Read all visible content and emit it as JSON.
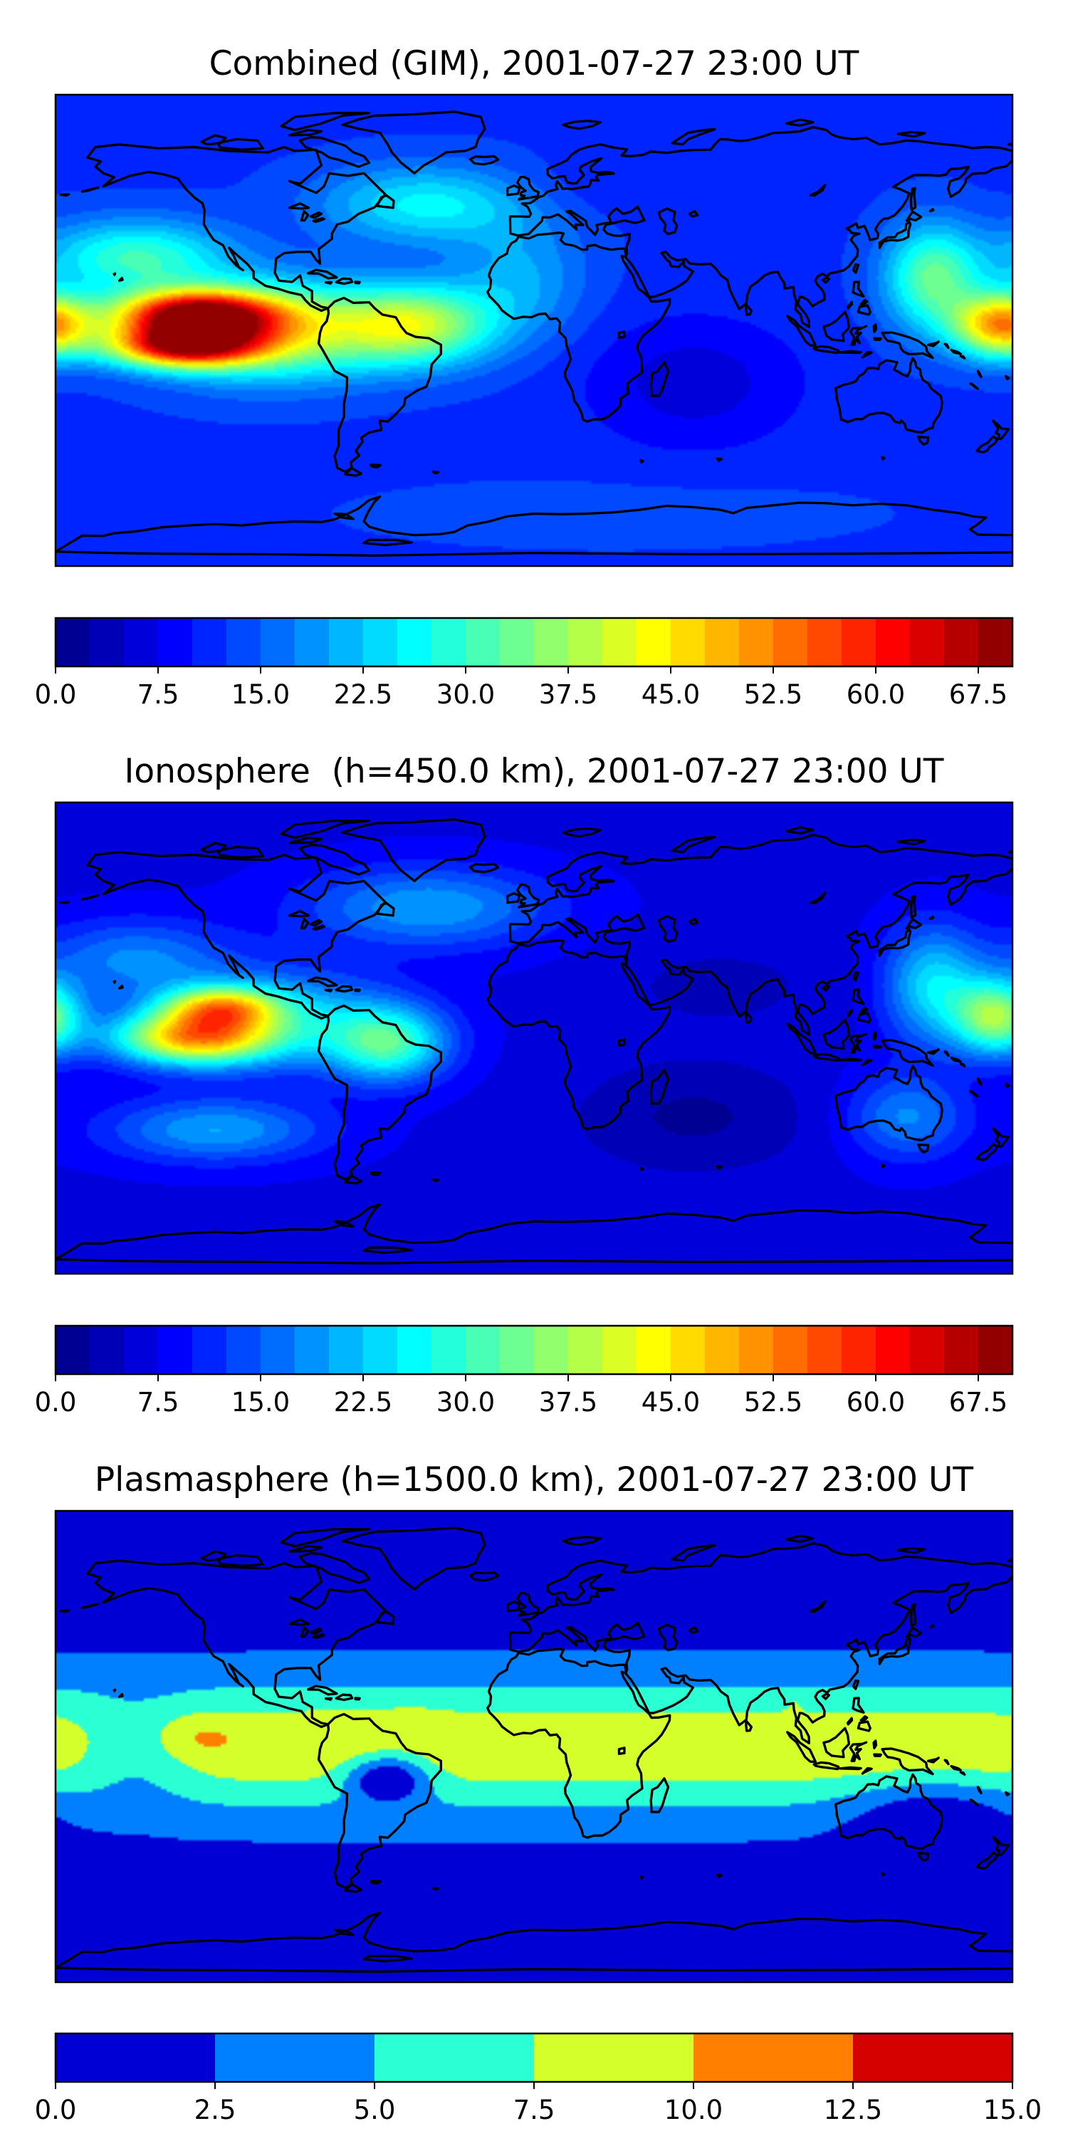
{
  "chart_data": [
    {
      "type": "heatmap",
      "title": "Combined (GIM), 2001-07-27 23:00 UT",
      "colormap": "jet",
      "colorbar": {
        "orientation": "horizontal",
        "range": [
          0.0,
          70.0
        ],
        "levels": 28,
        "ticks": [
          "0.0",
          "7.5",
          "15.0",
          "22.5",
          "30.0",
          "37.5",
          "45.0",
          "52.5",
          "60.0",
          "67.5"
        ],
        "tick_values": [
          0.0,
          7.5,
          15.0,
          22.5,
          30.0,
          37.5,
          45.0,
          52.5,
          60.0,
          67.5
        ]
      },
      "map": {
        "projection": "plate-carree",
        "lon_range": [
          -180,
          180
        ],
        "lat_range": [
          -90,
          90
        ],
        "coastlines": true,
        "grid": false
      },
      "background_value": 12,
      "features": [
        {
          "lon": -128,
          "lat": 6,
          "value": 62,
          "slon": 30,
          "slat": 9
        },
        {
          "lon": -132,
          "lat": -6,
          "value": 58,
          "slon": 28,
          "slat": 8
        },
        {
          "lon": -100,
          "lat": 0,
          "value": 40,
          "slon": 42,
          "slat": 18
        },
        {
          "lon": -45,
          "lat": 2,
          "value": 38,
          "slon": 30,
          "slat": 15
        },
        {
          "lon": -150,
          "lat": 28,
          "value": 30,
          "slon": 35,
          "slat": 14
        },
        {
          "lon": 176,
          "lat": 2,
          "value": 50,
          "slon": 18,
          "slat": 12
        },
        {
          "lon": 150,
          "lat": 20,
          "value": 33,
          "slon": 18,
          "slat": 20
        },
        {
          "lon": -40,
          "lat": 48,
          "value": 26,
          "slon": 40,
          "slat": 15
        },
        {
          "lon": -5,
          "lat": 20,
          "value": 20,
          "slon": 25,
          "slat": 22
        },
        {
          "lon": 60,
          "lat": -20,
          "value": 6,
          "slon": 40,
          "slat": 25
        },
        {
          "lon": 20,
          "lat": 55,
          "value": 10,
          "slon": 35,
          "slat": 12
        },
        {
          "lon": 30,
          "lat": -70,
          "value": 14,
          "slon": 90,
          "slat": 12
        }
      ]
    },
    {
      "type": "heatmap",
      "title": "Ionosphere  (h=450.0 km), 2001-07-27 23:00 UT",
      "colormap": "jet",
      "colorbar": {
        "orientation": "horizontal",
        "range": [
          0.0,
          70.0
        ],
        "levels": 28,
        "ticks": [
          "0.0",
          "7.5",
          "15.0",
          "22.5",
          "30.0",
          "37.5",
          "45.0",
          "52.5",
          "60.0",
          "67.5"
        ],
        "tick_values": [
          0.0,
          7.5,
          15.0,
          22.5,
          30.0,
          37.5,
          45.0,
          52.5,
          60.0,
          67.5
        ]
      },
      "map": {
        "projection": "plate-carree",
        "lon_range": [
          -180,
          180
        ],
        "lat_range": [
          -90,
          90
        ],
        "coastlines": true,
        "grid": false
      },
      "background_value": 7,
      "features": [
        {
          "lon": -128,
          "lat": 0,
          "value": 46,
          "slon": 30,
          "slat": 10
        },
        {
          "lon": -118,
          "lat": 12,
          "value": 36,
          "slon": 22,
          "slat": 8
        },
        {
          "lon": -55,
          "lat": -2,
          "value": 30,
          "slon": 22,
          "slat": 14
        },
        {
          "lon": -95,
          "lat": 8,
          "value": 22,
          "slon": 40,
          "slat": 18
        },
        {
          "lon": -150,
          "lat": 30,
          "value": 18,
          "slon": 35,
          "slat": 15
        },
        {
          "lon": 174,
          "lat": 8,
          "value": 36,
          "slon": 16,
          "slat": 14
        },
        {
          "lon": 150,
          "lat": 20,
          "value": 24,
          "slon": 18,
          "slat": 22
        },
        {
          "lon": 140,
          "lat": -30,
          "value": 18,
          "slon": 22,
          "slat": 16
        },
        {
          "lon": -40,
          "lat": 50,
          "value": 20,
          "slon": 45,
          "slat": 15
        },
        {
          "lon": -120,
          "lat": -35,
          "value": 20,
          "slon": 40,
          "slat": 12
        },
        {
          "lon": 60,
          "lat": -30,
          "value": 2,
          "slon": 45,
          "slat": 22
        },
        {
          "lon": 70,
          "lat": 20,
          "value": 4,
          "slon": 40,
          "slat": 16
        }
      ]
    },
    {
      "type": "heatmap",
      "title": "Plasmasphere (h=1500.0 km), 2001-07-27 23:00 UT",
      "colormap": "jet",
      "colorbar": {
        "orientation": "horizontal",
        "range": [
          0.0,
          15.0
        ],
        "levels": 6,
        "ticks": [
          "0.0",
          "2.5",
          "5.0",
          "7.5",
          "10.0",
          "12.5",
          "15.0"
        ],
        "tick_values": [
          0.0,
          2.5,
          5.0,
          7.5,
          10.0,
          12.5,
          15.0
        ]
      },
      "map": {
        "projection": "plate-carree",
        "lon_range": [
          -180,
          180
        ],
        "lat_range": [
          -90,
          90
        ],
        "coastlines": true,
        "grid": false
      },
      "background_value": 1.5,
      "band": {
        "center_lat": 0,
        "value": 9.3,
        "width_lat": 30
      },
      "features": [
        {
          "lon": 40,
          "lat": -2,
          "value": 1.6,
          "slon": 120,
          "slat": 22
        },
        {
          "lon": -128,
          "lat": 4,
          "value": 3.5,
          "slon": 16,
          "slat": 8
        },
        {
          "lon": -70,
          "lat": 8,
          "value": 2.0,
          "slon": 15,
          "slat": 10
        },
        {
          "lon": -45,
          "lat": 12,
          "value": 2.0,
          "slon": 12,
          "slat": 7
        },
        {
          "lon": -55,
          "lat": -12,
          "value": -6.5,
          "slon": 15,
          "slat": 9
        },
        {
          "lon": 98,
          "lat": 16,
          "value": 2.5,
          "slon": 3,
          "slat": 4
        },
        {
          "lon": -150,
          "lat": -2,
          "value": -2.0,
          "slon": 22,
          "slat": 20
        },
        {
          "lon": 150,
          "lat": -25,
          "value": -2.5,
          "slon": 30,
          "slat": 14
        }
      ]
    }
  ]
}
